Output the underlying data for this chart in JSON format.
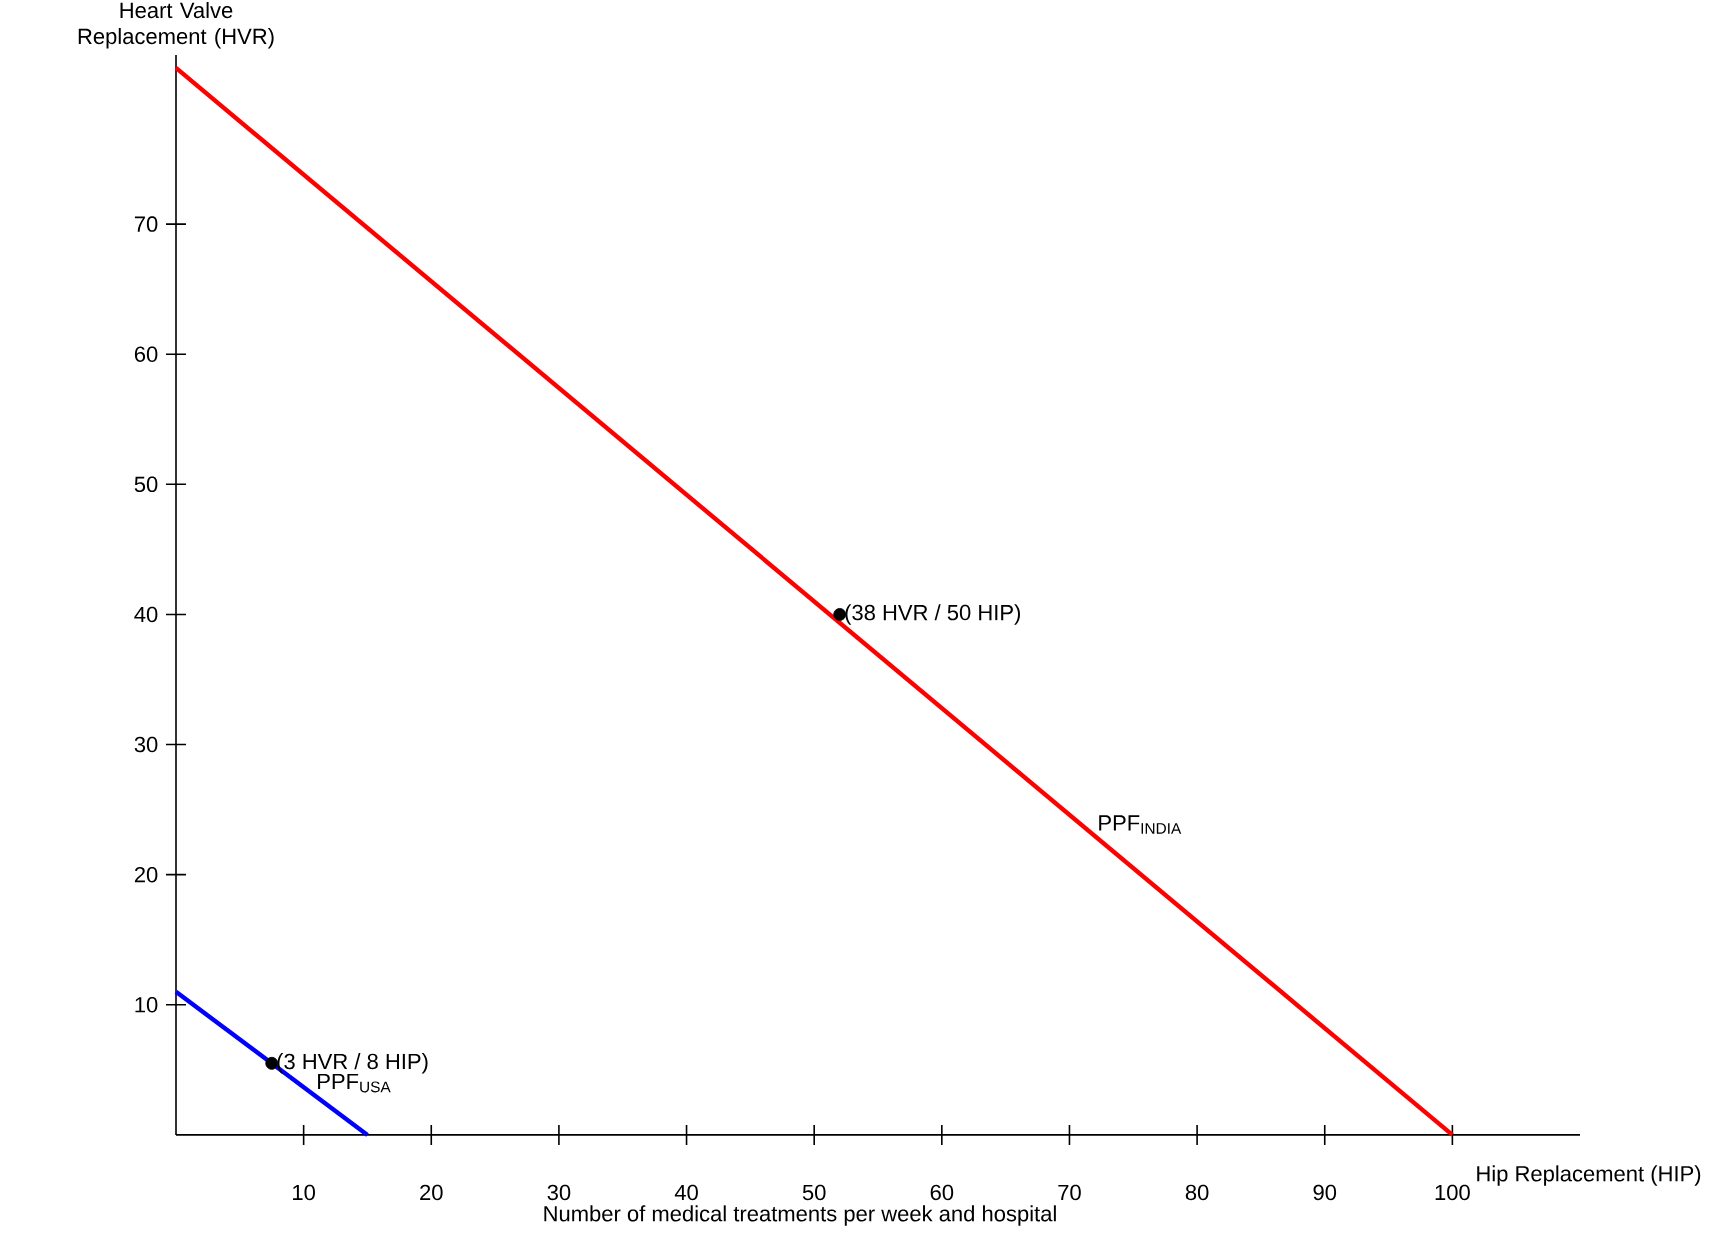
{
  "chart_data": {
    "type": "line",
    "ylabel": "Heart Valve Replacement (HVR)",
    "xlabel": "Hip Replacement (HIP)",
    "xlim": [
      0,
      110
    ],
    "ylim": [
      0,
      83
    ],
    "xticks": [
      10,
      20,
      30,
      40,
      50,
      60,
      70,
      80,
      90,
      100
    ],
    "yticks": [
      10,
      20,
      30,
      40,
      50,
      60,
      70
    ],
    "grid": false,
    "series": [
      {
        "name": "PPF$_{INDIA}$",
        "color": "#ff0000",
        "x": [
          0,
          100
        ],
        "values": [
          82,
          0
        ]
      },
      {
        "name": "PPF$_{USA}$",
        "color": "#0000ff",
        "x": [
          0,
          15
        ],
        "values": [
          11,
          0
        ]
      },
      {
        "type": "scatter",
        "color": "#000000",
        "x": [
          52,
          7.5
        ],
        "values": [
          40,
          5.5
        ]
      }
    ],
    "annotations": [
      {
        "text": "(38 HVR / 50 HIP)",
        "x": 52,
        "y": 40
      },
      {
        "text": "(3 HVR / 8 HIP)",
        "x": 7.5,
        "y": 5.5
      },
      "Number of medical treatments per week and hospital"
    ]
  }
}
